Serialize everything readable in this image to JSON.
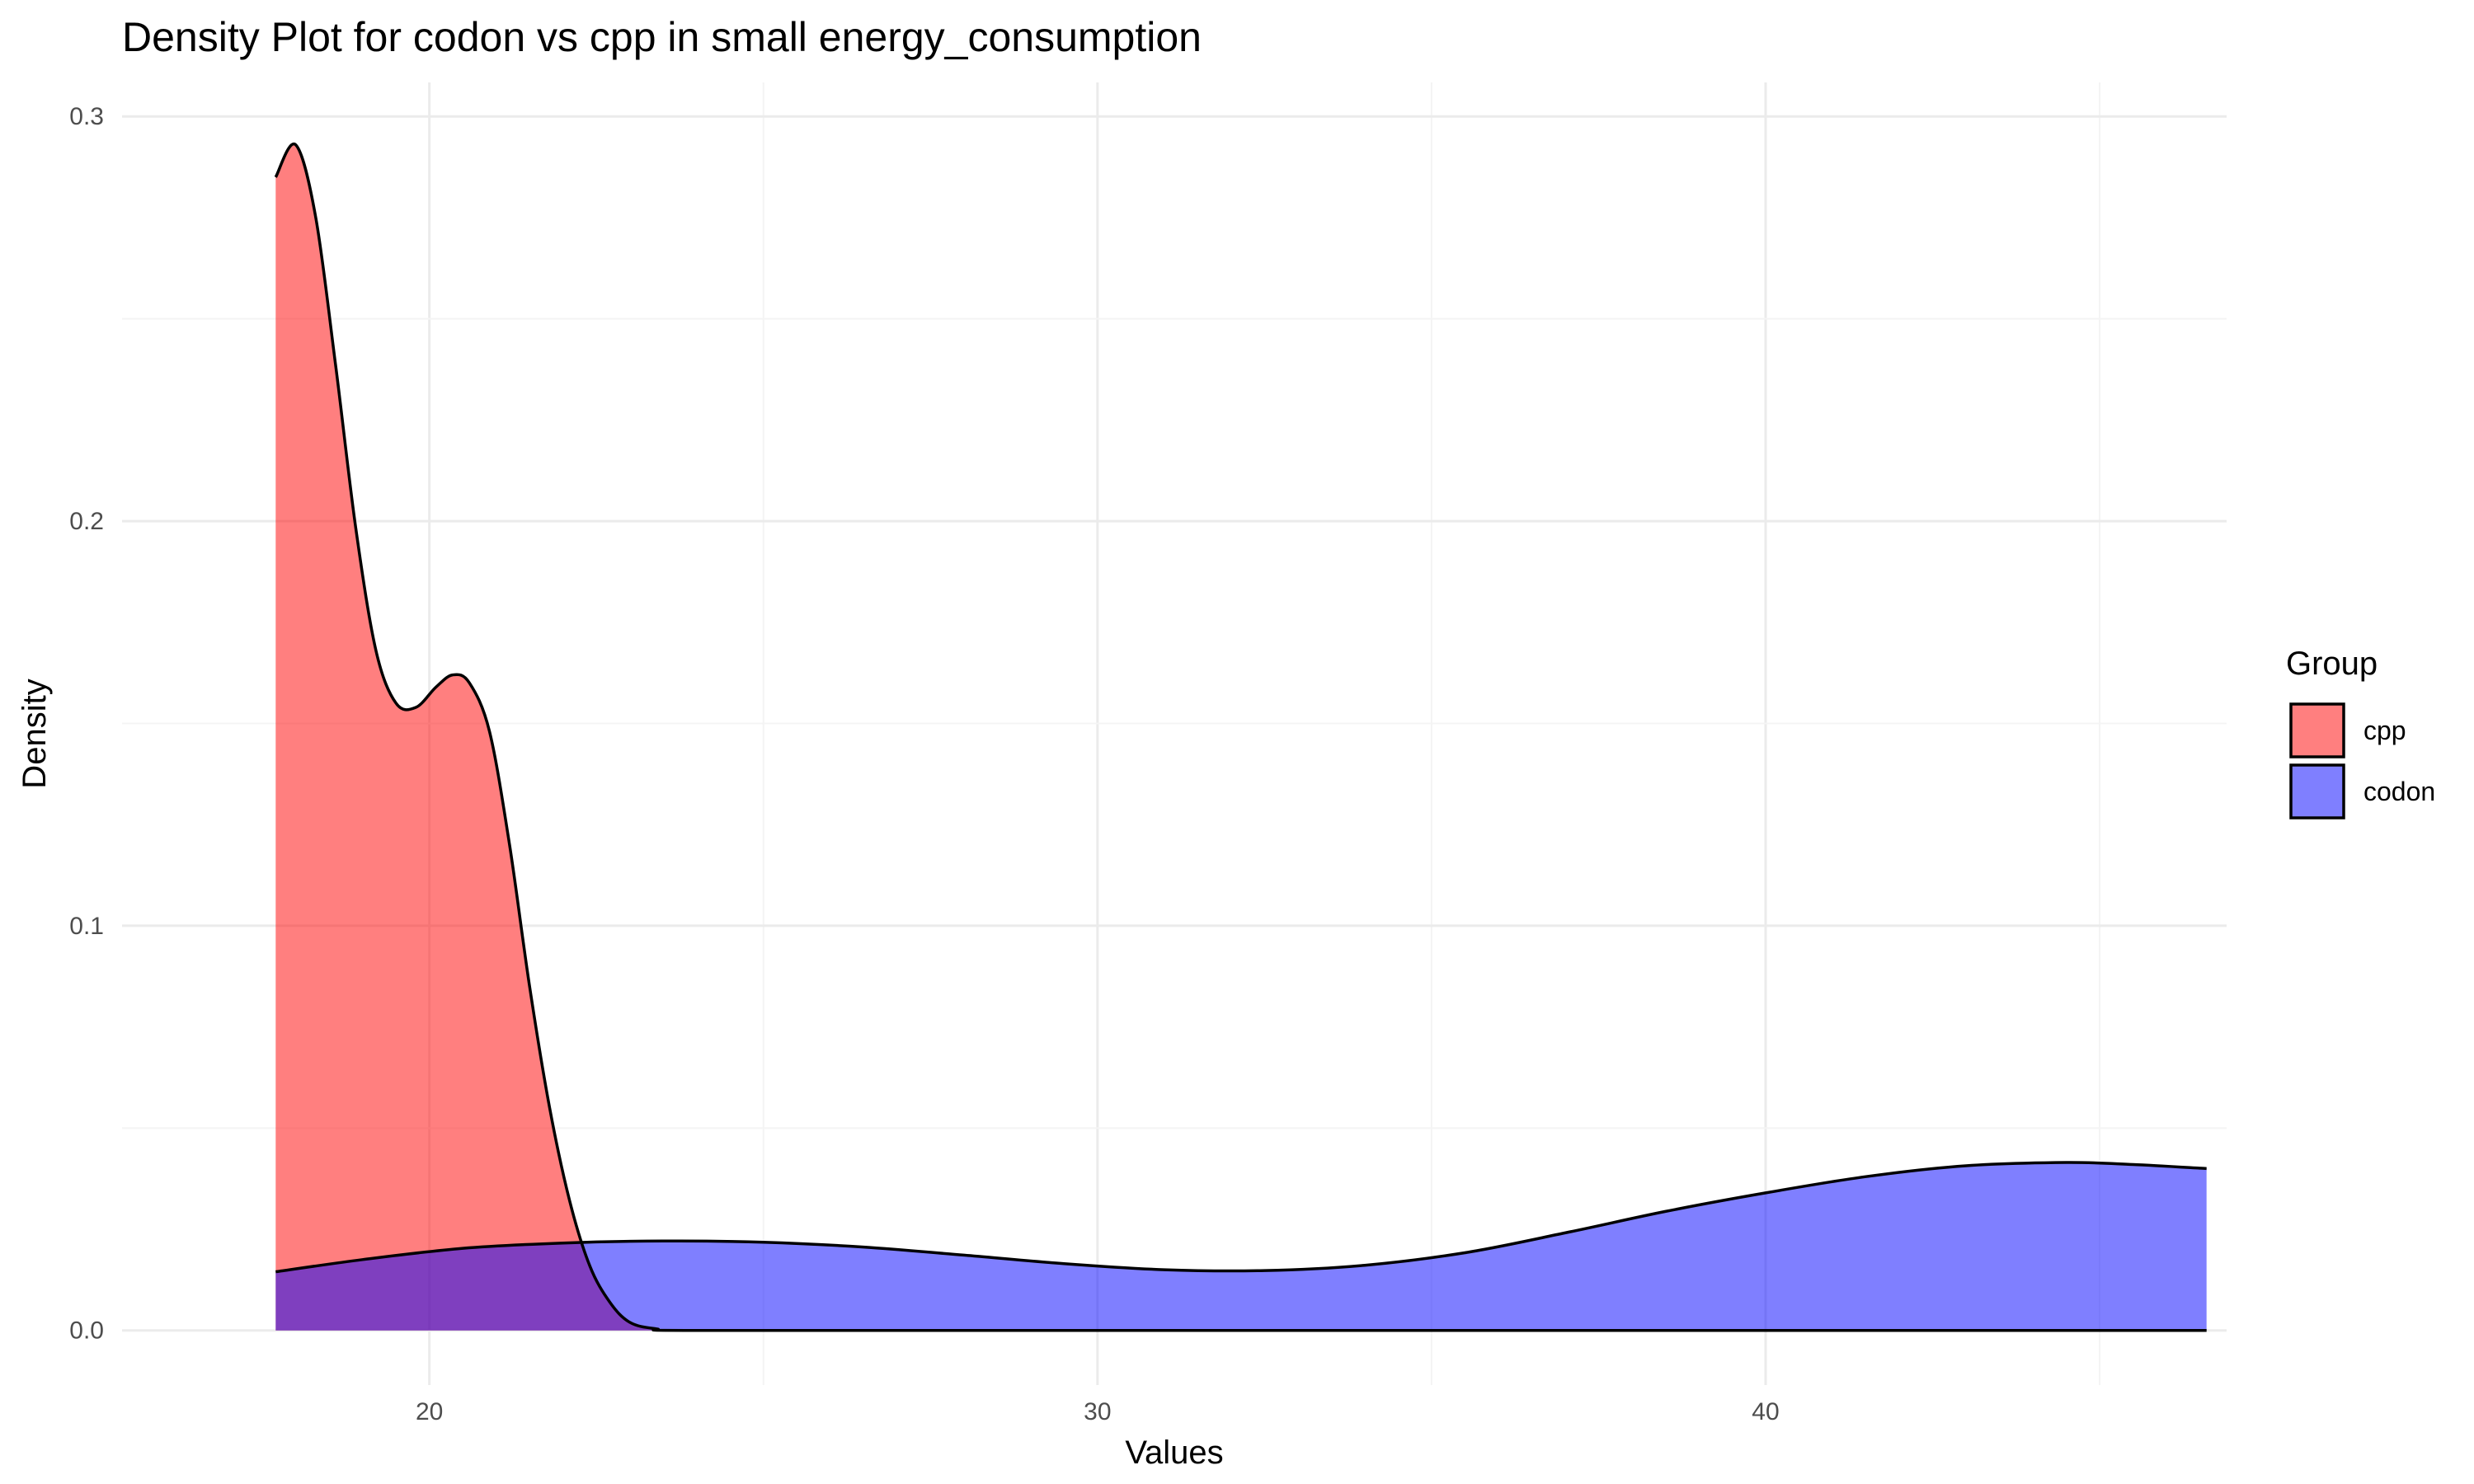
{
  "chart_data": {
    "type": "area",
    "title": "Density Plot for codon vs cpp in small energy_consumption",
    "xlabel": "Values",
    "ylabel": "Density",
    "xlim": [
      15.4,
      46.9
    ],
    "ylim": [
      -0.0135,
      0.3084
    ],
    "x_ticks": [
      20,
      30,
      40
    ],
    "x_tick_labels": [
      "20",
      "30",
      "40"
    ],
    "y_ticks": [
      0.0,
      0.1,
      0.2,
      0.3
    ],
    "y_tick_labels": [
      "0.0",
      "0.1",
      "0.2",
      "0.3"
    ],
    "grid": true,
    "legend": {
      "title": "Group",
      "position": "right"
    },
    "series": [
      {
        "name": "cpp",
        "color": "#FF0000",
        "fill_opacity": 0.5,
        "points": [
          [
            17.7,
            0.285
          ],
          [
            18.0,
            0.293
          ],
          [
            18.3,
            0.275
          ],
          [
            18.6,
            0.238
          ],
          [
            18.9,
            0.198
          ],
          [
            19.2,
            0.168
          ],
          [
            19.5,
            0.155
          ],
          [
            19.8,
            0.154
          ],
          [
            20.1,
            0.159
          ],
          [
            20.35,
            0.162
          ],
          [
            20.6,
            0.16
          ],
          [
            20.9,
            0.148
          ],
          [
            21.2,
            0.12
          ],
          [
            21.5,
            0.085
          ],
          [
            21.8,
            0.055
          ],
          [
            22.1,
            0.032
          ],
          [
            22.4,
            0.016
          ],
          [
            22.7,
            0.007
          ],
          [
            23.0,
            0.002
          ],
          [
            23.4,
            0.0004
          ],
          [
            24.0,
            0.0
          ],
          [
            30.0,
            0.0
          ],
          [
            40.0,
            0.0
          ],
          [
            46.6,
            0.0
          ]
        ]
      },
      {
        "name": "codon",
        "color": "#0000FF",
        "fill_opacity": 0.5,
        "points": [
          [
            17.7,
            0.0145
          ],
          [
            19.0,
            0.0175
          ],
          [
            20.5,
            0.0203
          ],
          [
            22.0,
            0.0216
          ],
          [
            23.5,
            0.0221
          ],
          [
            25.0,
            0.0218
          ],
          [
            26.5,
            0.0206
          ],
          [
            28.0,
            0.0186
          ],
          [
            29.5,
            0.0165
          ],
          [
            31.0,
            0.015
          ],
          [
            32.5,
            0.0148
          ],
          [
            34.0,
            0.0161
          ],
          [
            35.5,
            0.0192
          ],
          [
            37.0,
            0.0241
          ],
          [
            38.5,
            0.0294
          ],
          [
            40.0,
            0.034
          ],
          [
            41.5,
            0.038
          ],
          [
            43.0,
            0.0407
          ],
          [
            44.5,
            0.0415
          ],
          [
            45.5,
            0.041
          ],
          [
            46.6,
            0.04
          ]
        ]
      }
    ]
  }
}
